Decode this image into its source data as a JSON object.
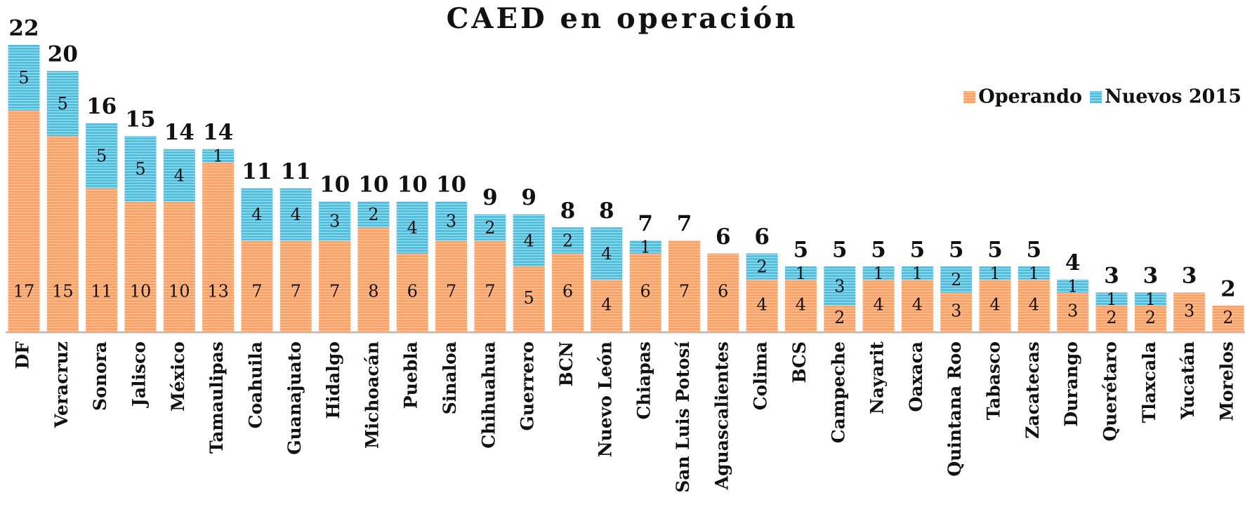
{
  "chart_data": {
    "type": "stacked_bar",
    "title": "CAED en operación",
    "categories": [
      "DF",
      "Veracruz",
      "Sonora",
      "Jalisco",
      "México",
      "Tamaulipas",
      "Coahuila",
      "Guanajuato",
      "Hidalgo",
      "Michoacán",
      "Puebla",
      "Sinaloa",
      "Chihuahua",
      "Guerrero",
      "BCN",
      "Nuevo León",
      "Chiapas",
      "San Luis Potosí",
      "Aguascalientes",
      "Colima",
      "BCS",
      "Campeche",
      "Nayarit",
      "Oaxaca",
      "Quintana Roo",
      "Tabasco",
      "Zacatecas",
      "Durango",
      "Querétaro",
      "Tlaxcala",
      "Yucatán",
      "Morelos"
    ],
    "series": [
      {
        "name": "Operando",
        "color": "#f4a46e",
        "values": [
          17,
          15,
          11,
          10,
          10,
          13,
          7,
          7,
          7,
          8,
          6,
          7,
          7,
          5,
          6,
          4,
          6,
          7,
          6,
          4,
          4,
          2,
          4,
          4,
          3,
          4,
          4,
          3,
          2,
          2,
          3,
          2
        ]
      },
      {
        "name": "Nuevos 2015",
        "color": "#5cbcd8",
        "values": [
          5,
          5,
          5,
          5,
          4,
          1,
          4,
          4,
          3,
          2,
          4,
          3,
          2,
          4,
          2,
          4,
          1,
          null,
          null,
          2,
          1,
          3,
          1,
          1,
          2,
          1,
          1,
          1,
          1,
          1,
          null,
          null
        ]
      }
    ],
    "totals": [
      22,
      20,
      16,
      15,
      14,
      14,
      11,
      11,
      10,
      10,
      10,
      10,
      9,
      9,
      8,
      8,
      7,
      7,
      6,
      6,
      5,
      5,
      5,
      5,
      5,
      5,
      5,
      4,
      3,
      3,
      3,
      2
    ],
    "legend": "top-right"
  }
}
